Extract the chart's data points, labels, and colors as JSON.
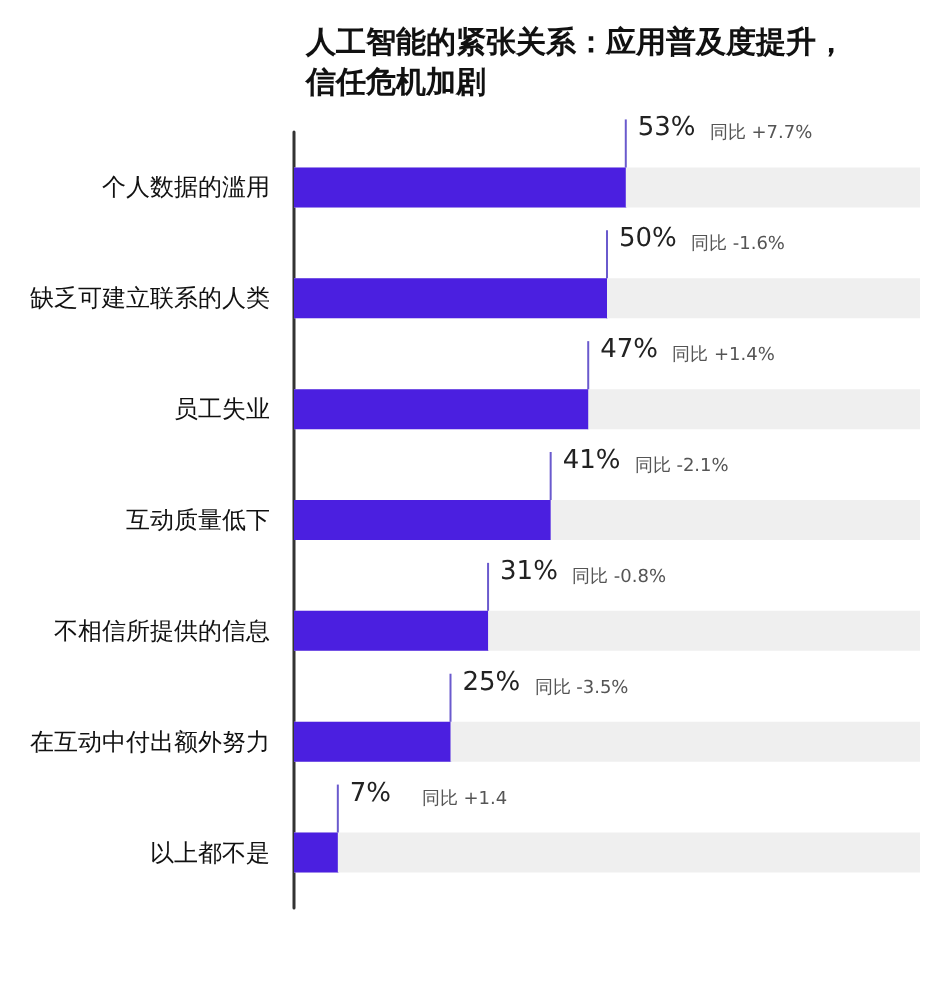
{
  "chart_data": {
    "type": "bar",
    "orientation": "horizontal",
    "title": "人工智能的紧张关系：应用普及度提升，信任危机加剧",
    "categories": [
      "个人数据的滥用",
      "缺乏可建立联系的人类",
      "员工失业",
      "互动质量低下",
      "不相信所提供的信息",
      "在互动中付出额外努力",
      "以上都不是"
    ],
    "values": [
      53,
      50,
      47,
      41,
      31,
      25,
      7
    ],
    "color": "#4b1fe0",
    "value_labels": [
      "53%",
      "50%",
      "47%",
      "41%",
      "31%",
      "25%",
      "7%"
    ],
    "xlim": [
      0,
      100
    ],
    "tick_labels": "y",
    "annotations": [
      "同比 +7.7%",
      "同比 -1.6%",
      "同比 +1.4%",
      "同比 -2.1%",
      "同比 -0.8%",
      "同比 -3.5%",
      "同比 +1.4"
    ]
  }
}
